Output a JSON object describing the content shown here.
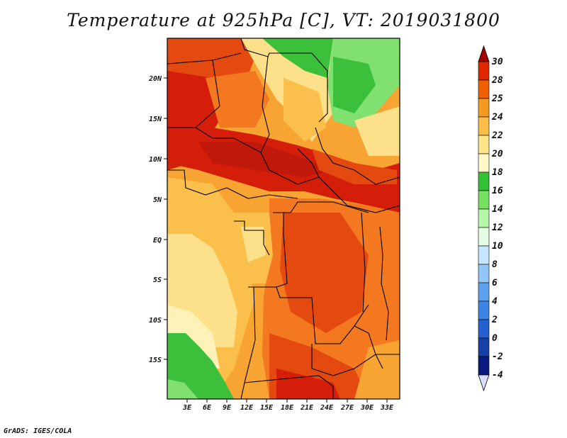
{
  "title": "Temperature at 925hPa [C], VT: 2019031800",
  "credit": "GrADS: IGES/COLA",
  "lat_labels": [
    "20N",
    "15N",
    "10N",
    "5N",
    "EQ",
    "5S",
    "10S",
    "15S"
  ],
  "lon_labels": [
    "3E",
    "6E",
    "9E",
    "12E",
    "15E",
    "18E",
    "21E",
    "24E",
    "27E",
    "30E",
    "33E"
  ],
  "colorbar": {
    "levels": [
      "30",
      "28",
      "25",
      "24",
      "22",
      "20",
      "18",
      "16",
      "14",
      "12",
      "10",
      "8",
      "6",
      "4",
      "2",
      "0",
      "-2",
      "-4"
    ],
    "colors": [
      "#a50000",
      "#e02800",
      "#f06000",
      "#f59a1e",
      "#fbbe48",
      "#fde58a",
      "#fff8c8",
      "#34c034",
      "#78e060",
      "#b6f6a8",
      "#e4fce4",
      "#c6e6ff",
      "#92c6f6",
      "#5ea2ee",
      "#3e84e4",
      "#2460d0",
      "#1440a8",
      "#0a1a80"
    ]
  },
  "colors": {
    "hot_red": "#d41e0a",
    "orange_red": "#e44a10",
    "orange": "#f37820",
    "light_orange": "#f8a432",
    "pale_orange": "#fbbf4c",
    "yellow": "#fde08a",
    "green": "#3cc03c",
    "light_green": "#80e070"
  }
}
